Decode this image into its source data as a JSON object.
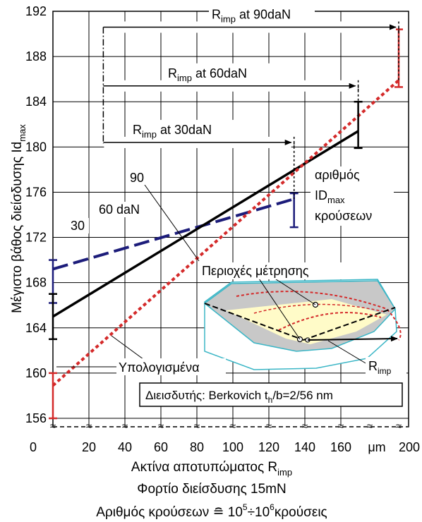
{
  "chart_data": {
    "type": "line",
    "x_axis": {
      "range": [
        0,
        200
      ],
      "ticks": [
        "0",
        "20",
        "40",
        "60",
        "80",
        "100",
        "120",
        "140",
        "160",
        "200"
      ],
      "unit": "μm",
      "label_main": "Ακτίνα αποτυπώματος R",
      "label_sub": "imp",
      "break_symbol": "≈"
    },
    "y_axis": {
      "range": [
        155,
        192
      ],
      "ticks": [
        156,
        160,
        164,
        168,
        172,
        176,
        180,
        184,
        188,
        192
      ],
      "label_main": "Μέγιστο βάθος διείσδυσης Id",
      "label_sub": "max"
    },
    "grid": true,
    "series": [
      {
        "name": "30",
        "style": "dashed",
        "color": "#1c1c7a",
        "x": [
          0,
          134
        ],
        "y": [
          169.2,
          175.4
        ]
      },
      {
        "name": "60 daN",
        "style": "solid",
        "color": "#000000",
        "x": [
          0,
          172
        ],
        "y": [
          165.0,
          181.4
        ]
      },
      {
        "name": "90",
        "style": "dotted",
        "color": "#d42a2a",
        "x": [
          0,
          200
        ],
        "y": [
          158.9,
          185.9
        ]
      }
    ],
    "error_bars": [
      {
        "color": "#1c1c7a",
        "x": 0,
        "y_low": 166.2,
        "y_high": 170.0
      },
      {
        "color": "#000000",
        "x": 0,
        "y_low": 163.0,
        "y_high": 167.0
      },
      {
        "color": "#d42a2a",
        "x": 0,
        "y_low": 156.0,
        "y_high": 160.0
      },
      {
        "color": "#1c1c7a",
        "x": 134,
        "y_low": 172.9,
        "y_high": 175.9
      },
      {
        "color": "#000000",
        "x": 172,
        "y_low": 179.9,
        "y_high": 184.0
      },
      {
        "color": "#d42a2a",
        "x": 200,
        "y_low": 185.3,
        "y_high": 190.4
      }
    ],
    "r_imp_arrows": [
      {
        "label_pre": "R",
        "label_sub": "imp",
        "label_post": " at 30daN",
        "y": 180.4,
        "x_start": 28,
        "x_end": 134
      },
      {
        "label_pre": "R",
        "label_sub": "imp",
        "label_post": " at 60daN",
        "y": 185.4,
        "x_start": 28,
        "x_end": 172
      },
      {
        "label_pre": "R",
        "label_sub": "imp",
        "label_post": " at 90daN",
        "y": 190.6,
        "x_start": 28,
        "x_end": 200
      }
    ],
    "annotations": {
      "impacts_title": "αριθμός",
      "impacts_id_main": "ID",
      "impacts_id_sub": "max",
      "impacts_unit": "κρούσεων",
      "series_label_30": "30",
      "series_label_60": "60 daN",
      "series_label_90": "90",
      "measurement_regions": "Περιοχές μέτρησης",
      "calculated": "Υπολογισμένα",
      "inset_r_main": "R",
      "inset_r_sub": "imp",
      "indenter_main": "Διεισδυτής: Berkovich t",
      "indenter_sub": "h",
      "indenter_post": "/b=2/56 nm"
    },
    "footer": {
      "load": "Φορτίο διείσδυσης 15mN",
      "impacts_main": "Αριθμός κρούσεων ≘ 10",
      "impacts_exp1": "5",
      "impacts_mid": "÷10",
      "impacts_exp2": "6",
      "impacts_post": "κρούσεις"
    }
  }
}
